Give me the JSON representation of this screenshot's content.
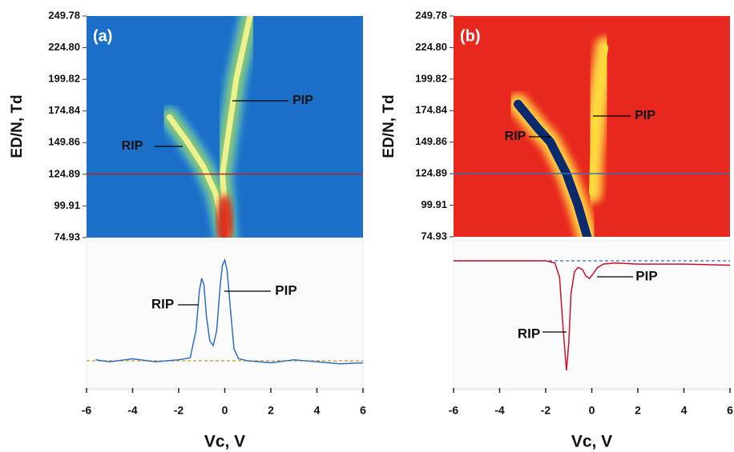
{
  "chart_data": [
    {
      "type": "heatmap",
      "label": "(a)",
      "ylabel": "ED/N, Td",
      "xlim": [
        -6,
        6
      ],
      "ylim": [
        74.93,
        249.78
      ],
      "yticks": [
        249.78,
        {
          "value": 224.8,
          "label": "224.80"
        },
        199.82,
        174.84,
        149.86,
        124.89,
        99.91,
        74.93
      ],
      "cut": 125,
      "background": "#1b6fc8",
      "series": [
        {
          "name": "RIP",
          "color": "#eef28c",
          "x": [
            -2.4,
            -1.6,
            -0.9,
            -0.4,
            -0.15,
            0.0
          ],
          "y": [
            170,
            150,
            130,
            110,
            90,
            75
          ]
        },
        {
          "name": "PIP",
          "color": "#eef28c",
          "x": [
            0.1,
            0.0,
            -0.1,
            0.1,
            0.3,
            0.5,
            0.8,
            1.1
          ],
          "y": [
            75,
            100,
            125,
            150,
            175,
            200,
            225,
            250
          ]
        }
      ]
    },
    {
      "type": "line",
      "xlabel": "Vc, V",
      "xlim": [
        -6,
        6
      ],
      "xticks": [
        -6,
        -4,
        -2,
        0,
        2,
        4,
        6
      ],
      "ylim": [
        -0.27,
        1.2
      ],
      "reference_line": 0,
      "color": "#2d6fbf",
      "x": [
        -5.6,
        -5,
        -4,
        -3,
        -2,
        -1.5,
        -1.25,
        -1.1,
        -1.0,
        -0.9,
        -0.8,
        -0.65,
        -0.5,
        -0.35,
        -0.2,
        -0.1,
        0,
        0.1,
        0.25,
        0.4,
        0.6,
        1,
        2,
        3,
        4,
        5,
        6
      ],
      "values": [
        0.01,
        -0.01,
        0.02,
        -0.01,
        0.01,
        0.03,
        0.3,
        0.7,
        0.82,
        0.75,
        0.45,
        0.2,
        0.15,
        0.3,
        0.75,
        0.95,
        1.0,
        0.9,
        0.5,
        0.12,
        0.02,
        0.0,
        -0.02,
        0.01,
        -0.01,
        -0.03,
        -0.02
      ],
      "annotations": [
        "RIP",
        "PIP"
      ]
    },
    {
      "type": "heatmap",
      "label": "(b)",
      "ylabel": "ED/N, Td",
      "xlim": [
        -6,
        6
      ],
      "ylim": [
        74.93,
        249.78
      ],
      "yticks": [
        249.78,
        {
          "value": 224.8,
          "label": "224.80"
        },
        199.82,
        174.84,
        149.86,
        124.89,
        99.91,
        74.93
      ],
      "cut": 125,
      "background": "#e8281f",
      "series": [
        {
          "name": "RIP",
          "color": "#0b2a6e",
          "x": [
            -3.2,
            -2.3,
            -1.8,
            -1.1,
            -0.6,
            -0.2
          ],
          "y": [
            180,
            160,
            150,
            125,
            100,
            75
          ]
        },
        {
          "name": "PIP",
          "color": "#ffd83a",
          "x": [
            0.0,
            0.05,
            0.2,
            0.4,
            0.6
          ],
          "y": [
            110,
            140,
            170,
            200,
            225
          ]
        }
      ]
    },
    {
      "type": "line",
      "xlabel": "Vc, V",
      "xlim": [
        -6,
        6
      ],
      "xticks": [
        -6,
        -4,
        -2,
        0,
        2,
        4,
        6
      ],
      "ylim": [
        -1.16,
        0.19
      ],
      "reference_line": 0,
      "color": "#c8102e",
      "x": [
        -6,
        -4,
        -2,
        -1.6,
        -1.4,
        -1.25,
        -1.1,
        -1.0,
        -0.9,
        -0.75,
        -0.6,
        -0.4,
        -0.25,
        -0.1,
        0.05,
        0.25,
        0.5,
        1,
        2,
        4,
        6
      ],
      "values": [
        0,
        0,
        0,
        -0.02,
        -0.15,
        -0.6,
        -1.0,
        -0.75,
        -0.3,
        -0.1,
        -0.06,
        -0.08,
        -0.14,
        -0.16,
        -0.12,
        -0.06,
        -0.03,
        -0.02,
        -0.03,
        -0.03,
        -0.04
      ],
      "annotations": [
        "RIP",
        "PIP"
      ]
    }
  ]
}
